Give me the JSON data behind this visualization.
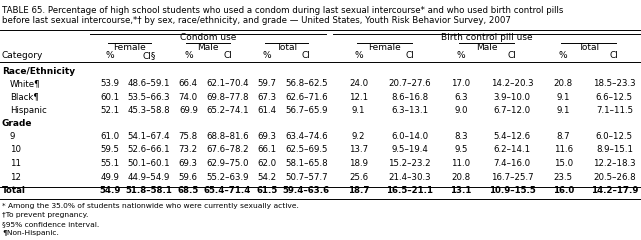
{
  "title_line1": "TABLE 65. Percentage of high school students who used a condom during last sexual intercourse* and who used birth control pills",
  "title_line2": "before last sexual intercourse,*† by sex, race/ethnicity, and grade — United States, Youth Risk Behavior Survey, 2007",
  "sections": [
    {
      "name": "Race/Ethnicity",
      "rows": [
        {
          "label": "White¶",
          "vals": [
            "53.9",
            "48.6–59.1",
            "66.4",
            "62.1–70.4",
            "59.7",
            "56.8–62.5",
            "24.0",
            "20.7–27.6",
            "17.0",
            "14.2–20.3",
            "20.8",
            "18.5–23.3"
          ]
        },
        {
          "label": "Black¶",
          "vals": [
            "60.1",
            "53.5–66.3",
            "74.0",
            "69.8–77.8",
            "67.3",
            "62.6–71.6",
            "12.1",
            "8.6–16.8",
            "6.3",
            "3.9–10.0",
            "9.1",
            "6.6–12.5"
          ]
        },
        {
          "label": "Hispanic",
          "vals": [
            "52.1",
            "45.3–58.8",
            "69.9",
            "65.2–74.1",
            "61.4",
            "56.7–65.9",
            "9.1",
            "6.3–13.1",
            "9.0",
            "6.7–12.0",
            "9.1",
            "7.1–11.5"
          ]
        }
      ]
    },
    {
      "name": "Grade",
      "rows": [
        {
          "label": "9",
          "vals": [
            "61.0",
            "54.1–67.4",
            "75.8",
            "68.8–81.6",
            "69.3",
            "63.4–74.6",
            "9.2",
            "6.0–14.0",
            "8.3",
            "5.4–12.6",
            "8.7",
            "6.0–12.5"
          ]
        },
        {
          "label": "10",
          "vals": [
            "59.5",
            "52.6–66.1",
            "73.2",
            "67.6–78.2",
            "66.1",
            "62.5–69.5",
            "13.7",
            "9.5–19.4",
            "9.5",
            "6.2–14.1",
            "11.6",
            "8.9–15.1"
          ]
        },
        {
          "label": "11",
          "vals": [
            "55.1",
            "50.1–60.1",
            "69.3",
            "62.9–75.0",
            "62.0",
            "58.1–65.8",
            "18.9",
            "15.2–23.2",
            "11.0",
            "7.4–16.0",
            "15.0",
            "12.2–18.3"
          ]
        },
        {
          "label": "12",
          "vals": [
            "49.9",
            "44.9–54.9",
            "59.6",
            "55.2–63.9",
            "54.2",
            "50.7–57.7",
            "25.6",
            "21.4–30.3",
            "20.8",
            "16.7–25.7",
            "23.5",
            "20.5–26.8"
          ]
        }
      ]
    }
  ],
  "total_row": {
    "label": "Total",
    "vals": [
      "54.9",
      "51.8–58.1",
      "68.5",
      "65.4–71.4",
      "61.5",
      "59.4–63.6",
      "18.7",
      "16.5–21.1",
      "13.1",
      "10.9–15.5",
      "16.0",
      "14.2–17.9"
    ]
  },
  "footnotes": [
    "* Among the 35.0% of students nationwide who were currently sexually active.",
    "†To prevent pregnancy.",
    "§95% confidence interval.",
    "¶Non-Hispanic."
  ],
  "background": "#ffffff"
}
